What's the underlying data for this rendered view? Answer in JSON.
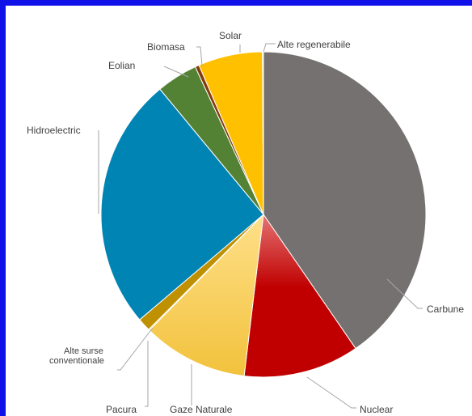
{
  "chart_data": {
    "type": "pie",
    "title": "",
    "colors": {
      "Carbune": "#767171",
      "Nuclear": "#c00000",
      "Gaze Naturale": "#ffd966",
      "Pacura": "#bf9000",
      "Alte surse conventionale": "#bf9000",
      "Hidroelectric": "#0084b4",
      "Eolian": "#548235",
      "Biomasa": "#843c0c",
      "Solar": "#ffc000",
      "Alte regenerabile": "#ffe699"
    },
    "slices": [
      {
        "name": "Carbune",
        "value": 40.4
      },
      {
        "name": "Nuclear",
        "value": 11.5
      },
      {
        "name": "Gaze Naturale",
        "value": 10.5
      },
      {
        "name": "Pacura",
        "value": 0.1
      },
      {
        "name": "Alte surse conventionale",
        "value": 1.3
      },
      {
        "name": "Hidroelectric",
        "value": 25.2
      },
      {
        "name": "Eolian",
        "value": 4.1
      },
      {
        "name": "Biomasa",
        "value": 0.4
      },
      {
        "name": "Solar",
        "value": 6.4
      },
      {
        "name": "Alte regenerabile",
        "value": 0.1
      }
    ],
    "labels": {
      "carbune": "Carbune",
      "nuclear": "Nuclear",
      "gaze": "Gaze Naturale",
      "pacura": "Pacura",
      "alte_surse_1": "Alte surse",
      "alte_surse_2": "conventionale",
      "hidro": "Hidroelectric",
      "eolian": "Eolian",
      "biomasa": "Biomasa",
      "solar": "Solar",
      "alte_regen": "Alte regenerabile"
    }
  }
}
